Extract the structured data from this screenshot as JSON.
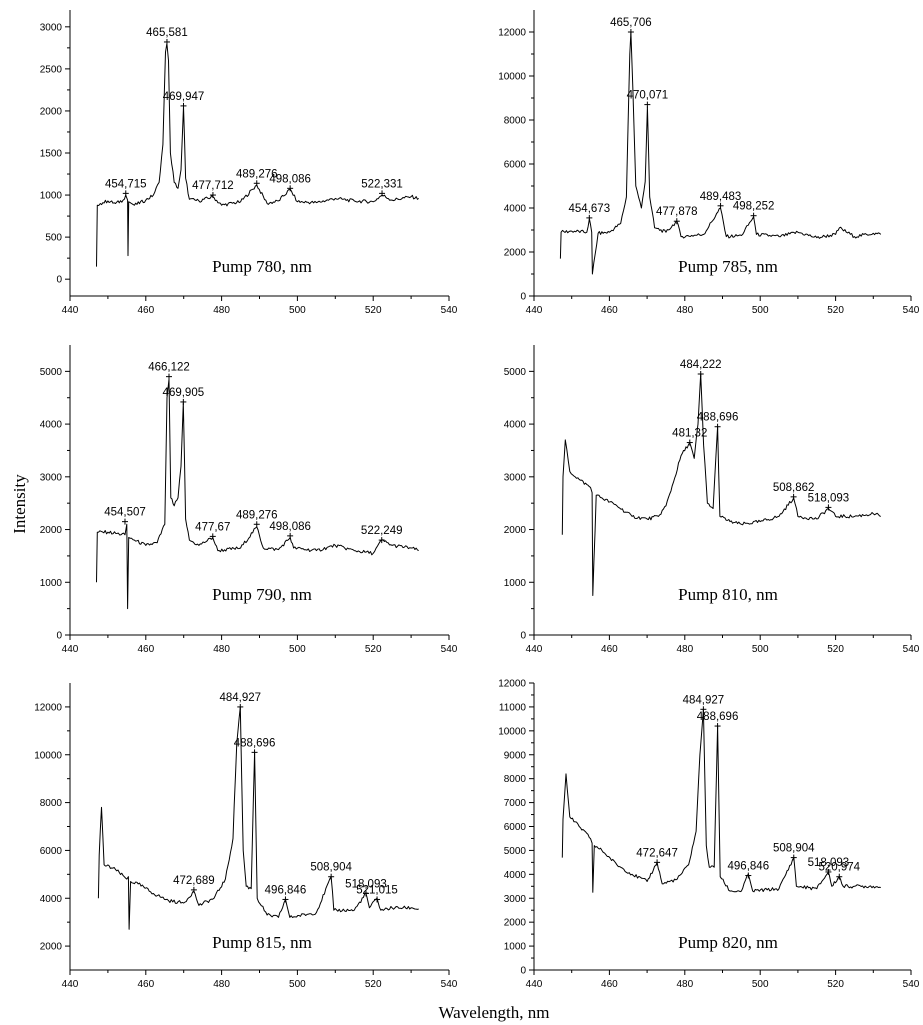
{
  "figure": {
    "ylabel": "Intensity",
    "xlabel": "Wavelength, nm"
  },
  "chart_data": [
    {
      "type": "line",
      "title": "Pump 780, nm",
      "xlim": [
        440,
        540
      ],
      "ylim": [
        -200,
        3200
      ],
      "xticks": [
        440,
        460,
        480,
        500,
        520,
        540
      ],
      "yticks": [
        0,
        500,
        1000,
        1500,
        2000,
        2500,
        3000
      ],
      "series": [
        {
          "x": [
            447,
            447.2,
            448,
            450,
            452,
            454,
            454.7,
            455.2,
            455.3,
            455.5,
            457,
            460,
            462,
            463.5,
            464.5,
            465.2,
            465.58,
            466,
            466.5,
            467.5,
            468.5,
            469.3,
            469.95,
            470.5,
            471.5,
            474,
            477.7,
            480,
            485,
            489.28,
            492,
            495,
            498.09,
            500,
            505,
            510,
            515,
            520,
            522.33,
            525,
            530,
            532
          ],
          "y": [
            150,
            880,
            900,
            930,
            900,
            940,
            1000,
            940,
            280,
            920,
            880,
            940,
            1000,
            1150,
            1600,
            2700,
            2800,
            2600,
            1500,
            1150,
            1080,
            1300,
            2050,
            1200,
            950,
            930,
            980,
            880,
            920,
            1120,
            900,
            930,
            1070,
            920,
            910,
            960,
            930,
            920,
            1000,
            940,
            980,
            960
          ]
        }
      ],
      "peaks": [
        {
          "x": 454.715,
          "y": 1020,
          "label": "454,715"
        },
        {
          "x": 465.581,
          "y": 2820,
          "label": "465,581"
        },
        {
          "x": 469.947,
          "y": 2060,
          "label": "469,947"
        },
        {
          "x": 477.712,
          "y": 1000,
          "label": "477,712"
        },
        {
          "x": 489.276,
          "y": 1140,
          "label": "489,276"
        },
        {
          "x": 498.086,
          "y": 1080,
          "label": "498,086"
        },
        {
          "x": 522.331,
          "y": 1020,
          "label": "522,331"
        }
      ]
    },
    {
      "type": "line",
      "title": "Pump 785, nm",
      "xlim": [
        440,
        540
      ],
      "ylim": [
        0,
        13000
      ],
      "xticks": [
        440,
        460,
        480,
        500,
        520,
        540
      ],
      "yticks": [
        0,
        2000,
        4000,
        6000,
        8000,
        10000,
        12000
      ],
      "series": [
        {
          "x": [
            447,
            447.2,
            450,
            454,
            454.7,
            455.3,
            455.5,
            457,
            460,
            463,
            464.5,
            465.4,
            465.71,
            466.2,
            467,
            468.5,
            469.5,
            470.07,
            470.7,
            472,
            475,
            477.88,
            479,
            485,
            489.48,
            491,
            495,
            498.25,
            499,
            505,
            510,
            515,
            520,
            521,
            525,
            530,
            532
          ],
          "y": [
            1700,
            2900,
            2950,
            2900,
            3500,
            2900,
            1000,
            2850,
            2900,
            3300,
            4500,
            11000,
            12000,
            9500,
            5000,
            4000,
            5200,
            8600,
            4500,
            3100,
            2900,
            3400,
            2700,
            2800,
            4000,
            2700,
            2750,
            3600,
            2800,
            2700,
            2900,
            2650,
            2800,
            3100,
            2700,
            2850,
            2800
          ]
        }
      ],
      "peaks": [
        {
          "x": 454.673,
          "y": 3550,
          "label": "454,673"
        },
        {
          "x": 465.706,
          "y": 12000,
          "label": "465,706"
        },
        {
          "x": 470.071,
          "y": 8700,
          "label": "470,071"
        },
        {
          "x": 477.878,
          "y": 3400,
          "label": "477,878"
        },
        {
          "x": 489.483,
          "y": 4100,
          "label": "489,483"
        },
        {
          "x": 498.252,
          "y": 3650,
          "label": "498,252"
        }
      ]
    },
    {
      "type": "line",
      "title": "Pump 790, nm",
      "xlim": [
        440,
        540
      ],
      "ylim": [
        0,
        5500
      ],
      "xticks": [
        440,
        460,
        480,
        500,
        520,
        540
      ],
      "yticks": [
        0,
        1000,
        2000,
        3000,
        4000,
        5000
      ],
      "series": [
        {
          "x": [
            447,
            447.2,
            450,
            454.5,
            455,
            455.2,
            455.5,
            457,
            460,
            463,
            465,
            465.6,
            466.12,
            466.6,
            467.5,
            468.5,
            469.3,
            469.9,
            470.5,
            471.5,
            474,
            477.67,
            479,
            485,
            489.28,
            491,
            495,
            498.09,
            499,
            505,
            510,
            515,
            520,
            522.25,
            525,
            530,
            532
          ],
          "y": [
            1000,
            1950,
            1950,
            1900,
            2100,
            500,
            1850,
            1800,
            1700,
            1750,
            2100,
            4500,
            4850,
            2600,
            2450,
            2600,
            3200,
            4400,
            2200,
            1800,
            1700,
            1850,
            1600,
            1650,
            2050,
            1650,
            1620,
            1850,
            1650,
            1600,
            1700,
            1600,
            1550,
            1800,
            1700,
            1650,
            1600
          ]
        }
      ],
      "peaks": [
        {
          "x": 454.507,
          "y": 2150,
          "label": "454,507"
        },
        {
          "x": 466.122,
          "y": 4900,
          "label": "466,122"
        },
        {
          "x": 469.905,
          "y": 4420,
          "label": "469,905"
        },
        {
          "x": 477.67,
          "y": 1870,
          "label": "477,67"
        },
        {
          "x": 489.276,
          "y": 2100,
          "label": "489,276"
        },
        {
          "x": 498.086,
          "y": 1880,
          "label": "498,086"
        },
        {
          "x": 522.249,
          "y": 1800,
          "label": "522,249"
        }
      ]
    },
    {
      "type": "line",
      "title": "Pump 810, nm",
      "xlim": [
        440,
        540
      ],
      "ylim": [
        0,
        5500
      ],
      "xticks": [
        440,
        460,
        480,
        500,
        520,
        540
      ],
      "yticks": [
        0,
        1000,
        2000,
        3000,
        4000,
        5000
      ],
      "series": [
        {
          "x": [
            447.5,
            447.7,
            448.3,
            449.5,
            452,
            455,
            455.4,
            455.6,
            456.5,
            458,
            462,
            466,
            470,
            473,
            475,
            477,
            479,
            481.3,
            482.5,
            483.5,
            484.22,
            485,
            486,
            487.5,
            488.7,
            489.3,
            492,
            495,
            500,
            505,
            508.86,
            510,
            515,
            518.09,
            520,
            525,
            530,
            532
          ],
          "y": [
            1900,
            3000,
            3700,
            3100,
            2950,
            2800,
            2700,
            750,
            2650,
            2600,
            2450,
            2250,
            2200,
            2250,
            2450,
            2900,
            3400,
            3650,
            3350,
            4000,
            4950,
            3600,
            2500,
            2400,
            3950,
            2250,
            2150,
            2100,
            2150,
            2250,
            2600,
            2250,
            2200,
            2400,
            2250,
            2250,
            2300,
            2250
          ]
        }
      ],
      "peaks": [
        {
          "x": 481.32,
          "y": 3650,
          "label": "481,32"
        },
        {
          "x": 484.222,
          "y": 4950,
          "label": "484,222"
        },
        {
          "x": 488.696,
          "y": 3950,
          "label": "488,696"
        },
        {
          "x": 508.862,
          "y": 2620,
          "label": "508,862"
        },
        {
          "x": 518.093,
          "y": 2420,
          "label": "518,093"
        }
      ]
    },
    {
      "type": "line",
      "title": "Pump 815, nm",
      "xlim": [
        440,
        540
      ],
      "ylim": [
        1000,
        13000
      ],
      "xticks": [
        440,
        460,
        480,
        500,
        520,
        540
      ],
      "yticks": [
        2000,
        4000,
        6000,
        8000,
        10000,
        12000
      ],
      "series": [
        {
          "x": [
            447.5,
            447.7,
            448.3,
            449,
            452,
            455,
            455.4,
            455.6,
            456,
            458,
            462,
            466,
            470,
            472.69,
            474,
            478,
            481,
            483,
            484,
            484.93,
            485.7,
            486.5,
            487.8,
            488.7,
            489.4,
            492,
            495,
            496.85,
            498,
            505,
            508.9,
            509.6,
            515,
            518.09,
            519,
            521.02,
            522,
            525,
            530,
            532
          ],
          "y": [
            4000,
            5800,
            7800,
            5400,
            5200,
            4800,
            4900,
            2700,
            4700,
            4600,
            4200,
            3900,
            3800,
            4300,
            3700,
            4000,
            4800,
            6500,
            10500,
            12000,
            6000,
            4500,
            4400,
            10100,
            4000,
            3300,
            3200,
            3950,
            3200,
            3400,
            4900,
            3500,
            3500,
            4200,
            3600,
            4000,
            3500,
            3600,
            3600,
            3550
          ]
        }
      ],
      "peaks": [
        {
          "x": 472.689,
          "y": 4350,
          "label": "472,689"
        },
        {
          "x": 484.927,
          "y": 12000,
          "label": "484,927"
        },
        {
          "x": 488.696,
          "y": 10100,
          "label": "488,696"
        },
        {
          "x": 496.846,
          "y": 3950,
          "label": "496,846"
        },
        {
          "x": 508.904,
          "y": 4900,
          "label": "508,904"
        },
        {
          "x": 518.093,
          "y": 4200,
          "label": "518,093"
        },
        {
          "x": 521.015,
          "y": 3950,
          "label": "521,015"
        }
      ]
    },
    {
      "type": "line",
      "title": "Pump 820, nm",
      "xlim": [
        440,
        540
      ],
      "ylim": [
        0,
        12000
      ],
      "xticks": [
        440,
        460,
        480,
        500,
        520,
        540
      ],
      "yticks": [
        0,
        1000,
        2000,
        3000,
        4000,
        5000,
        6000,
        7000,
        8000,
        9000,
        10000,
        11000,
        12000
      ],
      "series": [
        {
          "x": [
            447.5,
            447.7,
            448.5,
            449.5,
            452,
            455,
            455.4,
            455.6,
            456,
            458,
            462,
            466,
            470,
            472.65,
            474,
            478,
            481,
            483,
            484,
            484.93,
            485.7,
            486.5,
            487.8,
            488.7,
            489.4,
            492,
            495,
            496.85,
            498,
            505,
            508.9,
            509.6,
            515,
            518.09,
            519,
            520.97,
            522,
            525,
            530,
            532
          ],
          "y": [
            4700,
            6300,
            8200,
            6400,
            6000,
            5500,
            5300,
            3250,
            5200,
            5000,
            4400,
            4000,
            3700,
            4500,
            3600,
            3800,
            4400,
            5800,
            9000,
            10900,
            5200,
            4300,
            4300,
            10200,
            3900,
            3300,
            3300,
            4000,
            3300,
            3400,
            4700,
            3500,
            3400,
            4100,
            3500,
            3900,
            3500,
            3500,
            3500,
            3450
          ]
        }
      ],
      "peaks": [
        {
          "x": 472.647,
          "y": 4500,
          "label": "472,647"
        },
        {
          "x": 484.927,
          "y": 10900,
          "label": "484,927"
        },
        {
          "x": 488.696,
          "y": 10200,
          "label": "488,696"
        },
        {
          "x": 496.846,
          "y": 3950,
          "label": "496,846"
        },
        {
          "x": 508.904,
          "y": 4700,
          "label": "508,904"
        },
        {
          "x": 518.093,
          "y": 4100,
          "label": "518,093"
        },
        {
          "x": 520.974,
          "y": 3900,
          "label": "520,974"
        }
      ]
    }
  ]
}
